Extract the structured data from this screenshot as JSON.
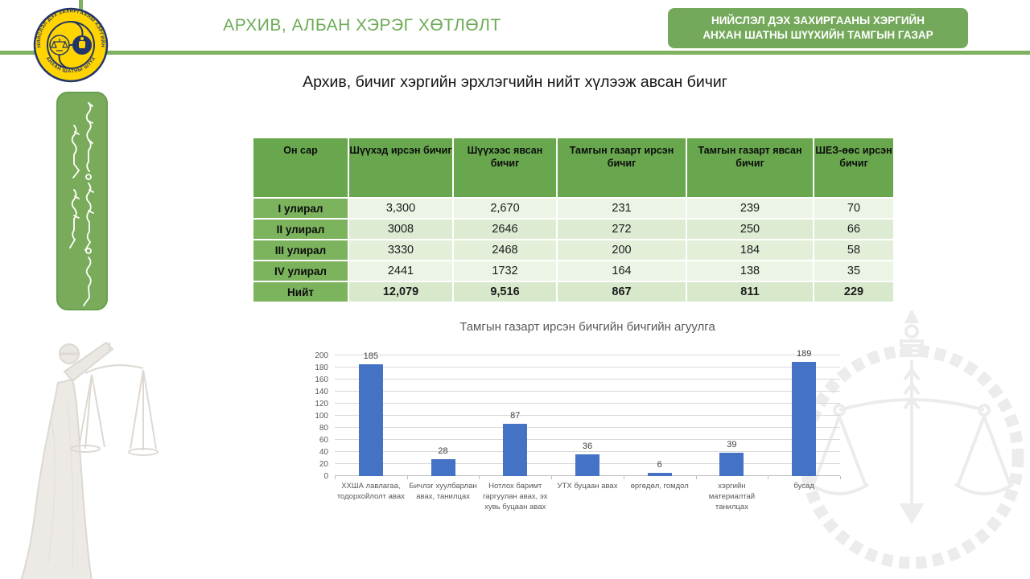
{
  "header": {
    "title": "АРХИВ, АЛБАН ХЭРЭГ ХӨТЛӨЛТ",
    "org_line1": "НИЙСЛЭЛ ДЭХ ЗАХИРГААНЫ ХЭРГИЙН",
    "org_line2": "АНХАН ШАТНЫ ШҮҮХИЙН ТАМГЫН ГАЗАР"
  },
  "logo": {
    "ring_text_top": "НИЙСЛЭЛ ДЭХ ЗАХИРГААНЫ ХЭРГИЙН",
    "ring_text_bottom": "АНХАН ШАТНЫ ШҮҮХ"
  },
  "slide_title": "Архив, бичиг хэргийн эрхлэгчийн нийт хүлээж авсан бичиг",
  "table": {
    "columns": [
      "Он сар",
      "Шүүхэд ирсэн бичиг",
      "Шүүхээс явсан бичиг",
      "Тамгын газарт ирсэн бичиг",
      "Тамгын газарт явсан бичиг",
      "ШЕЗ-өөс ирсэн бичиг"
    ],
    "rows": [
      {
        "label": "I улирал",
        "values": [
          "3,300",
          "2,670",
          "231",
          "239",
          "70"
        ],
        "bold": false
      },
      {
        "label": "II улирал",
        "values": [
          "3008",
          "2646",
          "272",
          "250",
          "66"
        ],
        "bold": false
      },
      {
        "label": "III улирал",
        "values": [
          "3330",
          "2468",
          "200",
          "184",
          "58"
        ],
        "bold": false
      },
      {
        "label": "IV улирал",
        "values": [
          "2441",
          "1732",
          "164",
          "138",
          "35"
        ],
        "bold": false
      },
      {
        "label": "Нийт",
        "values": [
          "12,079",
          "9,516",
          "867",
          "811",
          "229"
        ],
        "bold": true
      }
    ]
  },
  "chart_data": {
    "type": "bar",
    "title": "Тамгын газарт  ирсэн бичгийн бичгийн агуулга",
    "categories": [
      "ХХША лавлагаа, тодорхойлолт авах",
      "Бичлэг хуулбарлан авах, танилцах",
      "Нотлох баримт гаргуулан авах, эх хувь буцаан авах",
      "УТХ буцаан авах",
      "өргөдөл, гомдол",
      "хэргийн материалтай танилцах",
      "бусад"
    ],
    "values": [
      185,
      28,
      87,
      36,
      6,
      39,
      189
    ],
    "xlabel": "",
    "ylabel": "",
    "ylim": [
      0,
      200
    ],
    "ytick_step": 20,
    "yticks": [
      0,
      20,
      40,
      60,
      80,
      100,
      120,
      140,
      160,
      180,
      200
    ],
    "grid": true,
    "legend": "none",
    "bar_color": "#4472c4"
  },
  "colors": {
    "accent_green": "#7eb260",
    "box_green": "#74a85a",
    "title_green": "#6cab55",
    "table_header_green": "#68a74e",
    "row_label_green": "#7cb35d",
    "row_light_a": "#ecf4e5",
    "row_light_b": "#dcebd1",
    "row_light_c": "#e4efda",
    "row_total": "#d8e8cb",
    "bar_blue": "#4472c4",
    "logo_navy": "#23356b",
    "logo_yellow": "#ffd400"
  }
}
